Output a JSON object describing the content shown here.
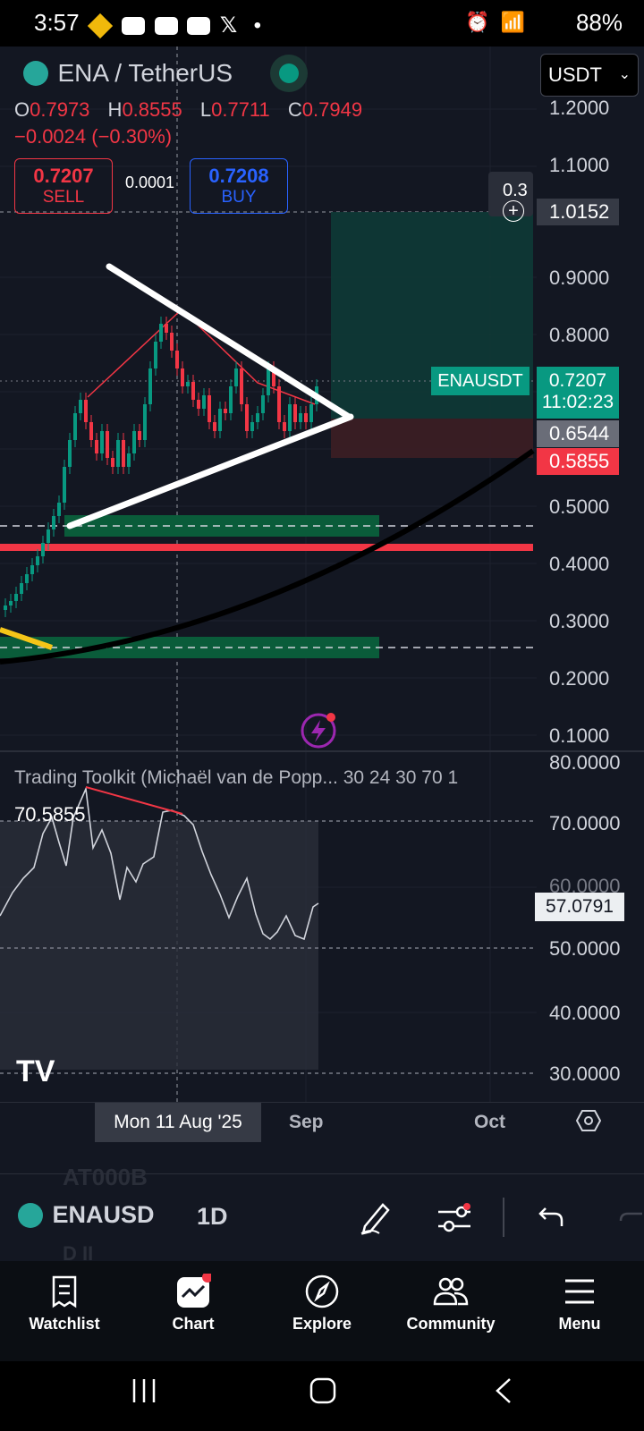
{
  "status_bar": {
    "time": "3:57",
    "battery": "88%"
  },
  "header": {
    "symbol_title": "ENA / TetherUS",
    "currency": "USDT",
    "ohlc": {
      "o_label": "O",
      "o": "0.7973",
      "h_label": "H",
      "h": "0.8555",
      "l_label": "L",
      "l": "0.7711",
      "c_label": "C",
      "c": "0.7949"
    },
    "change": "−0.0024 (−0.30%)",
    "sell_price": "0.7207",
    "sell_label": "SELL",
    "spread": "0.0001",
    "buy_price": "0.7208",
    "buy_label": "BUY"
  },
  "price_axis": [
    "1.2000",
    "1.1000",
    "0.9000",
    "0.8000",
    "0.5000",
    "0.4000",
    "0.3000",
    "0.2000",
    "0.1000"
  ],
  "price_tags": {
    "crosshair": "1.0152",
    "partial": "0.3",
    "symbol": "ENAUSDT",
    "last": "0.7207",
    "countdown": "11:02:23",
    "entry": "0.6544",
    "stop": "0.5855"
  },
  "indicator": {
    "title": "Trading Toolkit (Michaël van de Popp... 30 24 30 70 1",
    "value_left": "70.5855",
    "value_right": "57.0791",
    "axis": [
      "80.0000",
      "70.0000",
      "60.0000",
      "50.0000",
      "40.0000",
      "30.0000"
    ]
  },
  "time_axis": {
    "crosshair_date": "Mon 11 Aug '25",
    "sep": "Sep",
    "oct": "Oct"
  },
  "toolbar": {
    "symbol": "ENAUSD",
    "interval": "1D",
    "ghost_top": "AT000B",
    "ghost_bottom": "D II"
  },
  "nav": [
    {
      "label": "Watchlist"
    },
    {
      "label": "Chart"
    },
    {
      "label": "Explore"
    },
    {
      "label": "Community"
    },
    {
      "label": "Menu"
    }
  ],
  "colors": {
    "bg": "#131722",
    "green": "#089981",
    "red": "#f23645",
    "blue": "#2962ff",
    "accent": "#26a69a"
  }
}
